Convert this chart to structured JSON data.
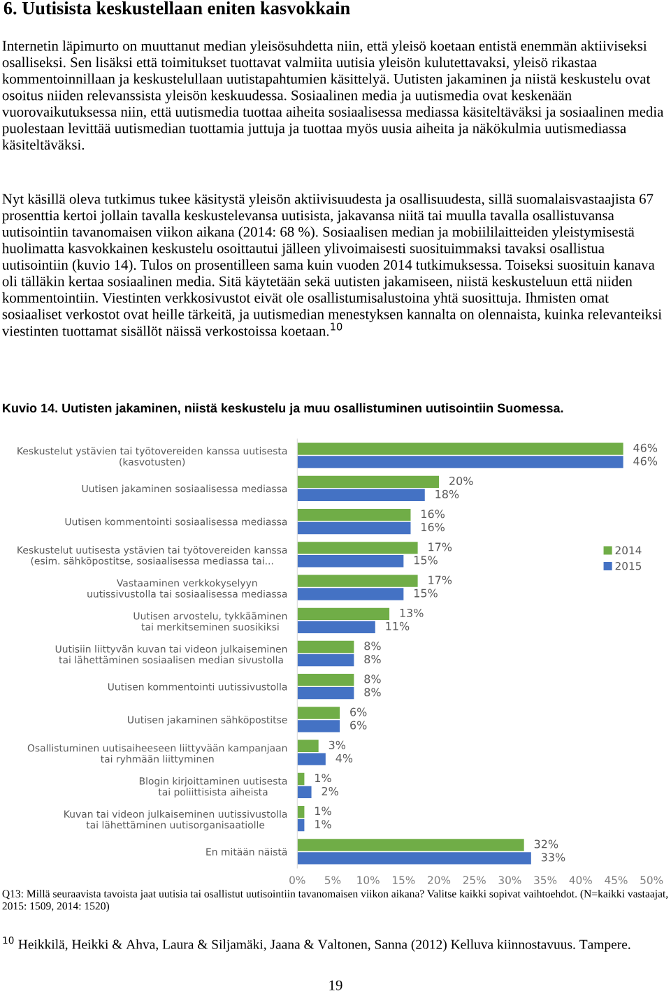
{
  "chart_data": {
    "type": "bar",
    "orientation": "horizontal",
    "title": "6. Uutisista keskustellaan eniten kasvokkain",
    "subtitle": "Kuvio 14. Uutisten jakaminen, niistä keskustelu ja muu osallistuminen uutisointiin Suomessa.",
    "categories": [
      "Keskustelut ystävien tai työtovereiden kanssa uutisesta\n(kasvotusten)",
      "Uutisen jakaminen sosiaalisessa mediassa",
      "Uutisen kommentointi sosiaalisessa mediassa",
      "Keskustelut uutisesta ystävien tai työtovereiden kanssa\n(esim. sähköpostitse, sosiaalisessa mediassa tai...",
      "Vastaaminen verkkokyselyyn\nuutissivustolla tai sosiaalisessa mediassa",
      "Uutisen arvostelu, tykkääminen\ntai merkitseminen suosikiksi",
      "Uutisiin liittyvän kuvan tai videon julkaiseminen\ntai lähettäminen sosiaalisen median sivustolla",
      "Uutisen kommentointi uutissivustolla",
      "Uutisen jakaminen sähköpostitse",
      "Osallistuminen uutisaiheeseen liittyvään kampanjaan\ntai ryhmään liittyminen",
      "Blogin kirjoittaminen uutisesta\ntai poliittisista aiheista",
      "Kuvan tai videon julkaiseminen uutissivustolla\ntai lähettäminen uutisorganisaatiolle",
      "En mitään näistä"
    ],
    "series": [
      {
        "name": "2014",
        "color": "#70ad47",
        "values": [
          46,
          20,
          16,
          17,
          17,
          13,
          8,
          8,
          6,
          3,
          1,
          1,
          32
        ],
        "value_labels": [
          "46%",
          "20%",
          "16%",
          "17%",
          "17%",
          "13%",
          "8%",
          "8%",
          "6%",
          "3%",
          "1%",
          "1%",
          "32%"
        ]
      },
      {
        "name": "2015",
        "color": "#4472c4",
        "values": [
          46,
          18,
          16,
          15,
          15,
          11,
          8,
          8,
          6,
          4,
          2,
          1,
          33
        ],
        "value_labels": [
          "46%",
          "18%",
          "16%",
          "15%",
          "15%",
          "11%",
          "8%",
          "8%",
          "6%",
          "4%",
          "2%",
          "1%",
          "33%"
        ]
      }
    ],
    "xlim": [
      0,
      50
    ],
    "xticks": [
      {
        "value": 0,
        "label": "0%"
      },
      {
        "value": 5,
        "label": "5%"
      },
      {
        "value": 10,
        "label": "10%"
      },
      {
        "value": 15,
        "label": "15%"
      },
      {
        "value": 20,
        "label": "20%"
      },
      {
        "value": 25,
        "label": "25%"
      },
      {
        "value": 30,
        "label": "30%"
      },
      {
        "value": 35,
        "label": "35%"
      },
      {
        "value": 40,
        "label": "40%"
      },
      {
        "value": 45,
        "label": "45%"
      },
      {
        "value": 50,
        "label": "50%"
      }
    ],
    "legend": "right",
    "grid": false,
    "annotations": [
      "Internetin läpimurto on muuttanut median yleisösuhdetta niin, että yleisö koetaan entistä enemmän aktiiviseksi osalliseksi. Sen lisäksi että toimitukset tuottavat valmiita uutisia yleisön kulutettavaksi, yleisö rikastaa kommentoinnillaan ja keskustelullaan uutistapahtumien käsittelyä. Uutisten jakaminen ja niistä keskustelu ovat osoitus niiden relevanssista yleisön keskuudessa. Sosiaalinen media ja uutismedia ovat keskenään vuorovaikutuksessa niin, että uutismedia tuottaa aiheita sosiaalisessa mediassa käsiteltäväksi ja sosiaalinen media puolestaan levittää uutismedian tuottamia juttuja ja tuottaa myös uusia aiheita ja näkökulmia uutismediassa käsiteltäväksi.",
      "Nyt käsillä oleva tutkimus tukee käsitystä yleisön aktiivisuudesta ja osallisuudesta, sillä suomalaisvastaajista 67 prosenttia kertoi jollain tavalla keskustelevansa uutisista, jakavansa niitä tai muulla tavalla osallistuvansa uutisointiin tavanomaisen viikon aikana (2014: 68 %). Sosiaalisen median ja mobiililaitteiden yleistymisestä huolimatta kasvokkainen keskustelu osoittautui jälleen ylivoimaisesti suosituimmaksi tavaksi osallistua uutisointiin (kuvio 14). Tulos on prosentilleen sama kuin vuoden 2014 tutkimuksessa. Toiseksi suosituin kanava oli tälläkin kertaa sosiaalinen media. Sitä käytetään sekä uutisten jakamiseen, niistä keskusteluun että niiden kommentointiin. Viestinten verkkosivustot eivät ole osallistumisalustoina yhtä suosittuja. Ihmisten omat sosiaaliset verkostot ovat heille tärkeitä, ja uutismedian menestyksen kannalta on olennaista, kuinka relevanteiksi viestinten tuottamat sisällöt näissä verkostoissa koetaan.$^{10}$",
      "Q13: Millä seuraavista tavoista jaat uutisia tai osallistut uutisointiin tavanomaisen viikon aikana? Valitse kaikki sopivat vaihtoehdot. (N=kaikki vastaajat, 2015: 1509, 2014: 1520)",
      "$^{10}$ Heikkilä, Heikki & Ahva, Laura & Siljamäki, Jaana & Valtonen, Sanna (2012) Kelluva kiinnostavuus. Tampere.",
      "19"
    ]
  }
}
